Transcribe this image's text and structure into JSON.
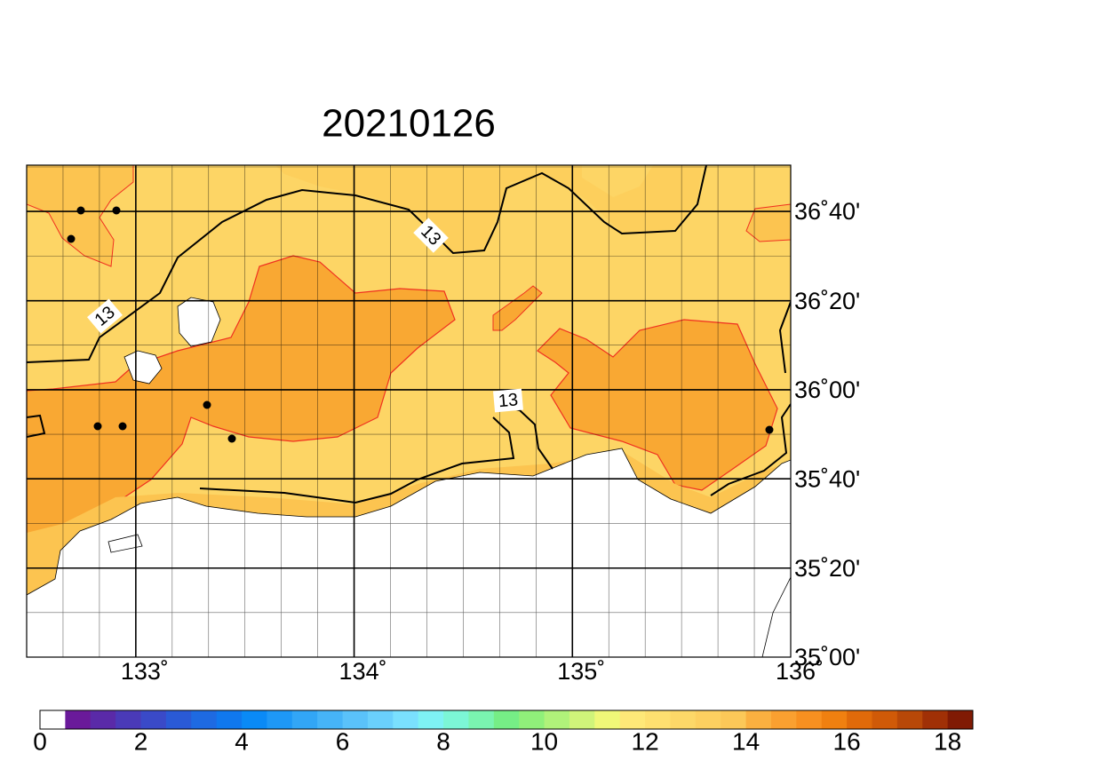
{
  "chart_data": {
    "type": "map",
    "title": "20210126",
    "xlim": [
      132.5,
      136
    ],
    "ylim": [
      35,
      36.84
    ],
    "xticks": [
      {
        "value": 133,
        "label": "133˚"
      },
      {
        "value": 134,
        "label": "134˚"
      },
      {
        "value": 135,
        "label": "135˚"
      },
      {
        "value": 136,
        "label": "136˚"
      }
    ],
    "yticks": [
      {
        "value": 35,
        "label": "35˚00'"
      },
      {
        "value": 35.333,
        "label": "35˚20'"
      },
      {
        "value": 35.667,
        "label": "35˚40'"
      },
      {
        "value": 36,
        "label": "36˚00'"
      },
      {
        "value": 36.333,
        "label": "36˚20'"
      },
      {
        "value": 36.667,
        "label": "36˚40'"
      }
    ],
    "contour_labels": [
      "13",
      "13",
      "13"
    ],
    "colorbar": {
      "range": [
        0,
        18.5
      ],
      "ticks": [
        0,
        2,
        4,
        6,
        8,
        10,
        12,
        14,
        16,
        18
      ],
      "colors": [
        "#ffffff",
        "#6a1a9a",
        "#5a2aa8",
        "#4a3ab8",
        "#3a4ac8",
        "#2a5ad6",
        "#1e6ae2",
        "#1078ee",
        "#0a8af6",
        "#1e98f6",
        "#32a6f6",
        "#46b4f8",
        "#5ac2fa",
        "#6ad0fc",
        "#7ae0fe",
        "#7ef2f4",
        "#7cf6d6",
        "#7af4b0",
        "#76ee86",
        "#90f07a",
        "#b0f27a",
        "#d0f47a",
        "#f0f878",
        "#fee878",
        "#fee070",
        "#fdd868",
        "#fdd060",
        "#fcc858",
        "#fbb040",
        "#faa030",
        "#f89020",
        "#f08010",
        "#e06a0a",
        "#d05a08",
        "#b84808",
        "#a03006",
        "#801a04"
      ]
    }
  }
}
